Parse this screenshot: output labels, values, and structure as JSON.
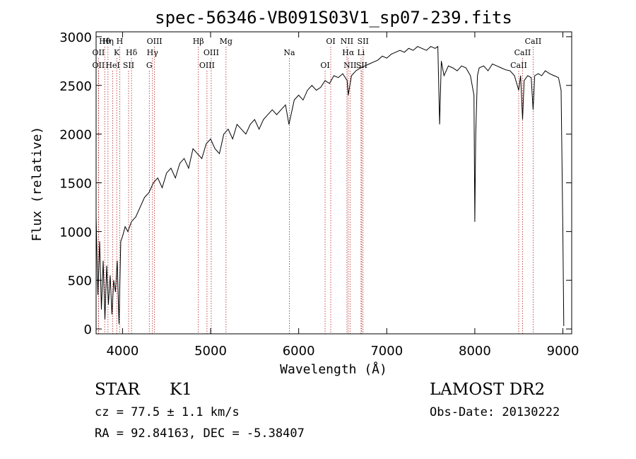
{
  "chart_data": {
    "type": "line",
    "title": "spec-56346-VB091S03V1_sp07-239.fits",
    "xlabel": "Wavelength (Å)",
    "ylabel": "Flux (relative)",
    "xlim": [
      3700,
      9100
    ],
    "ylim": [
      -50,
      3050
    ],
    "x_ticks": [
      4000,
      5000,
      6000,
      7000,
      8000,
      9000
    ],
    "y_ticks": [
      0,
      500,
      1000,
      1500,
      2000,
      2500,
      3000
    ],
    "grid": false,
    "series": [
      {
        "x": [
          3700,
          3720,
          3740,
          3760,
          3780,
          3800,
          3820,
          3840,
          3860,
          3880,
          3900,
          3920,
          3940,
          3960,
          3980,
          4000,
          4030,
          4060,
          4100,
          4150,
          4200,
          4250,
          4300,
          4350,
          4400,
          4450,
          4500,
          4550,
          4600,
          4650,
          4700,
          4750,
          4800,
          4850,
          4900,
          4950,
          5000,
          5050,
          5100,
          5150,
          5200,
          5250,
          5300,
          5350,
          5400,
          5450,
          5500,
          5550,
          5600,
          5650,
          5700,
          5750,
          5800,
          5850,
          5890,
          5950,
          6000,
          6050,
          6100,
          6150,
          6200,
          6250,
          6300,
          6350,
          6400,
          6450,
          6500,
          6550,
          6563,
          6600,
          6650,
          6700,
          6750,
          6800,
          6850,
          6900,
          6950,
          7000,
          7050,
          7100,
          7150,
          7200,
          7250,
          7300,
          7350,
          7400,
          7450,
          7500,
          7550,
          7580,
          7600,
          7620,
          7650,
          7700,
          7750,
          7800,
          7850,
          7900,
          7950,
          7990,
          8000,
          8010,
          8030,
          8050,
          8100,
          8150,
          8200,
          8250,
          8300,
          8350,
          8400,
          8450,
          8498,
          8520,
          8542,
          8560,
          8600,
          8640,
          8662,
          8680,
          8720,
          8760,
          8800,
          8850,
          8900,
          8950,
          8980,
          9000,
          9010
        ],
        "y": [
          1150,
          350,
          900,
          200,
          700,
          100,
          650,
          250,
          550,
          150,
          500,
          380,
          700,
          50,
          900,
          950,
          1050,
          1000,
          1100,
          1150,
          1250,
          1350,
          1400,
          1500,
          1550,
          1450,
          1600,
          1650,
          1550,
          1700,
          1750,
          1650,
          1850,
          1800,
          1750,
          1900,
          1950,
          1850,
          1800,
          2000,
          2050,
          1950,
          2100,
          2050,
          2000,
          2100,
          2150,
          2050,
          2150,
          2200,
          2250,
          2200,
          2250,
          2300,
          2100,
          2350,
          2400,
          2350,
          2450,
          2500,
          2450,
          2480,
          2550,
          2520,
          2600,
          2580,
          2620,
          2550,
          2400,
          2600,
          2650,
          2680,
          2700,
          2720,
          2740,
          2760,
          2800,
          2780,
          2820,
          2840,
          2860,
          2840,
          2880,
          2860,
          2900,
          2880,
          2860,
          2900,
          2880,
          2900,
          2100,
          2750,
          2600,
          2700,
          2680,
          2650,
          2700,
          2680,
          2600,
          2400,
          1100,
          2000,
          2600,
          2680,
          2700,
          2650,
          2720,
          2700,
          2680,
          2660,
          2650,
          2600,
          2450,
          2600,
          2150,
          2550,
          2600,
          2580,
          2250,
          2600,
          2620,
          2600,
          2650,
          2620,
          2600,
          2580,
          2450,
          1000,
          30
        ],
        "fill_none": true
      }
    ],
    "line_markers": [
      {
        "label": "Hθ",
        "x": 3798
      },
      {
        "label": "OII",
        "x": 3727
      },
      {
        "label": "OII",
        "x": 3727
      },
      {
        "label": "Hη",
        "x": 3835
      },
      {
        "label": "K",
        "x": 3934
      },
      {
        "label": "HeI",
        "x": 3889
      },
      {
        "label": "H",
        "x": 3968
      },
      {
        "label": "Hδ",
        "x": 4102
      },
      {
        "label": "SII",
        "x": 4069
      },
      {
        "label": "OIII",
        "x": 4363
      },
      {
        "label": "Hγ",
        "x": 4340
      },
      {
        "label": "G",
        "x": 4304
      },
      {
        "label": "Hβ",
        "x": 4861
      },
      {
        "label": "OIII",
        "x": 5007
      },
      {
        "label": "OIII",
        "x": 4959
      },
      {
        "label": "Mg",
        "x": 5175
      },
      {
        "label": "Na",
        "x": 5894
      },
      {
        "label": "OI",
        "x": 6300
      },
      {
        "label": "OI",
        "x": 6364
      },
      {
        "label": "Hα",
        "x": 6563
      },
      {
        "label": "SII",
        "x": 6716
      },
      {
        "label": "NII",
        "x": 6548
      },
      {
        "label": "Li",
        "x": 6708
      },
      {
        "label": "NII",
        "x": 6583
      },
      {
        "label": "SII",
        "x": 6731
      },
      {
        "label": "CaII",
        "x": 8542
      },
      {
        "label": "CaII",
        "x": 8498
      },
      {
        "label": "CaII",
        "x": 8662
      }
    ]
  },
  "footer": {
    "object_class": "STAR",
    "subclass": "K1",
    "survey": "LAMOST DR2",
    "cz": "cz = 77.5 ± 1.1 km/s",
    "obs_date": "Obs-Date: 20130222",
    "radec": "RA =  92.84163, DEC =  -5.38407"
  }
}
